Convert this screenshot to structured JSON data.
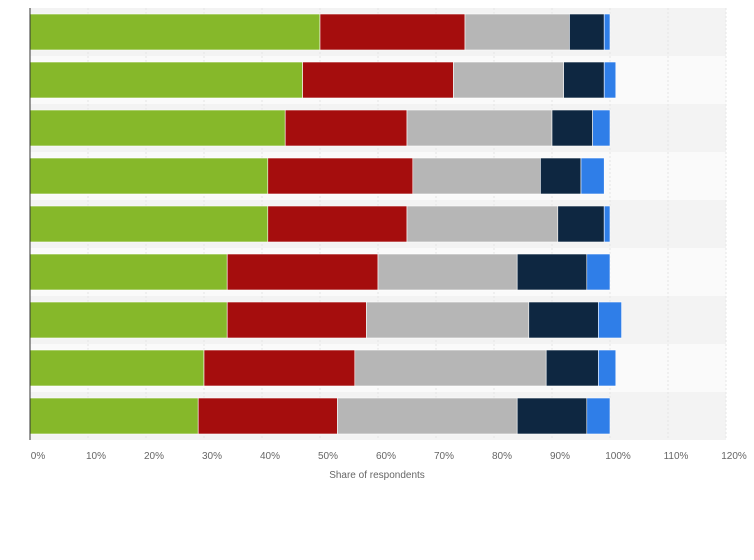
{
  "chart_data": {
    "type": "bar",
    "orientation": "horizontal",
    "stacked": true,
    "title": "",
    "xlabel": "Share of respondents",
    "ylabel": "",
    "xlim": [
      0,
      120
    ],
    "x_ticks": [
      "0%",
      "10%",
      "20%",
      "30%",
      "40%",
      "50%",
      "60%",
      "70%",
      "80%",
      "90%",
      "100%",
      "110%",
      "120%"
    ],
    "grid": true,
    "legend": "none",
    "categories": [
      "",
      "",
      "",
      "",
      "",
      "",
      "",
      "",
      ""
    ],
    "series": [
      {
        "color": "#86b82a",
        "values": [
          50,
          47,
          44,
          41,
          41,
          34,
          34,
          30,
          29
        ]
      },
      {
        "color": "#a50d0d",
        "values": [
          25,
          26,
          21,
          25,
          24,
          26,
          24,
          26,
          24
        ]
      },
      {
        "color": "#b6b6b6",
        "values": [
          18,
          19,
          25,
          22,
          26,
          24,
          28,
          33,
          31
        ]
      },
      {
        "color": "#0e2741",
        "values": [
          6,
          7,
          7,
          7,
          8,
          12,
          12,
          9,
          12
        ]
      },
      {
        "color": "#2f7ee8",
        "values": [
          1,
          2,
          3,
          4,
          1,
          4,
          4,
          3,
          4
        ]
      }
    ]
  }
}
